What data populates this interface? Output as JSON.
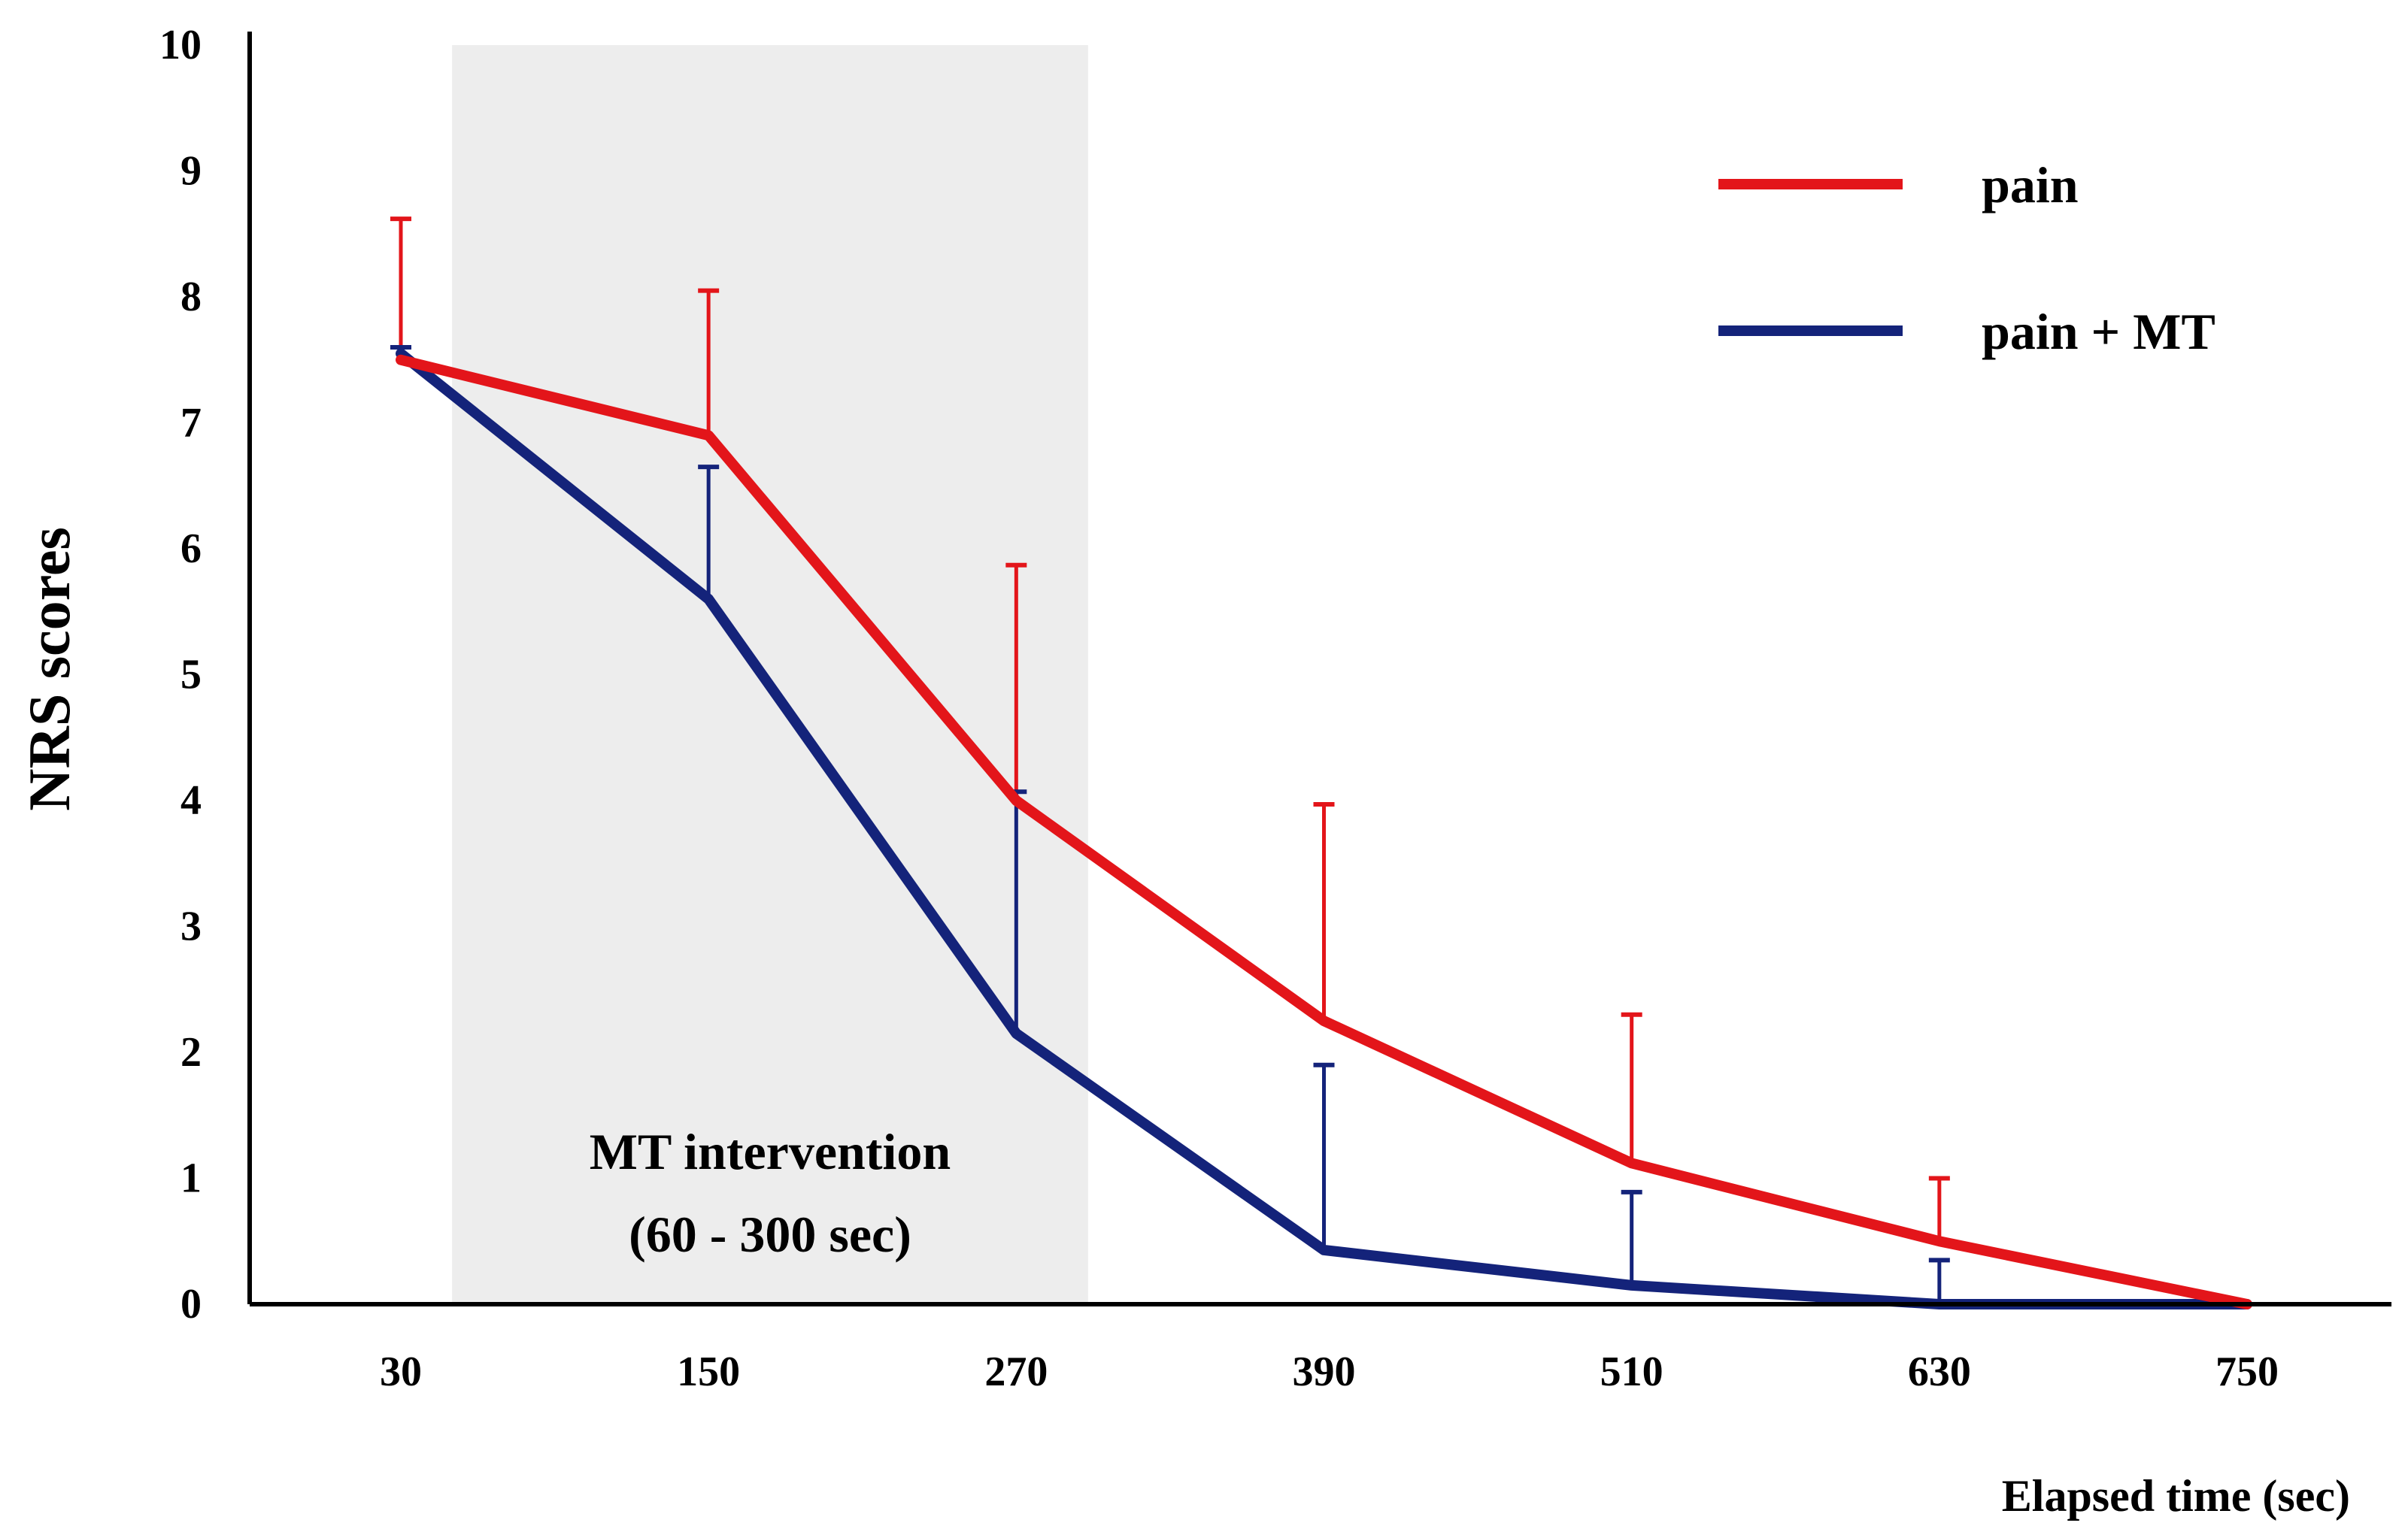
{
  "chart_data": {
    "type": "line",
    "title": "",
    "xlabel": "Elapsed time (sec)",
    "ylabel": "NRS scores",
    "x": [
      30,
      150,
      270,
      390,
      510,
      630,
      750
    ],
    "x_tick_labels": [
      "30",
      "150",
      "270",
      "390",
      "510",
      "630",
      "750"
    ],
    "y_ticks": [
      0,
      1,
      2,
      3,
      4,
      5,
      6,
      7,
      8,
      9,
      10
    ],
    "y_tick_labels": [
      "0",
      "1",
      "2",
      "3",
      "4",
      "5",
      "6",
      "7",
      "8",
      "9",
      "10"
    ],
    "ylim": [
      0,
      10
    ],
    "xlim": [
      -45,
      800
    ],
    "grid": false,
    "legend_position": "top-right",
    "series": [
      {
        "name": "pain",
        "color": "#e3151a",
        "values": [
          7.5,
          6.9,
          4.0,
          2.25,
          1.12,
          0.5,
          0.0
        ],
        "error_upper": [
          1.12,
          1.15,
          1.87,
          1.72,
          1.18,
          0.5,
          null
        ]
      },
      {
        "name": "pain + MT",
        "color": "#14237a",
        "values": [
          7.55,
          5.6,
          2.15,
          0.43,
          0.15,
          0.0,
          0.0
        ],
        "error_upper": [
          0.05,
          1.05,
          1.92,
          1.47,
          0.74,
          0.35,
          null
        ]
      }
    ],
    "shaded_region": {
      "label_line1": "MT intervention",
      "label_line2": "(60 - 300 sec)",
      "x_start": 50,
      "x_end": 298,
      "color": "#ededed"
    }
  }
}
